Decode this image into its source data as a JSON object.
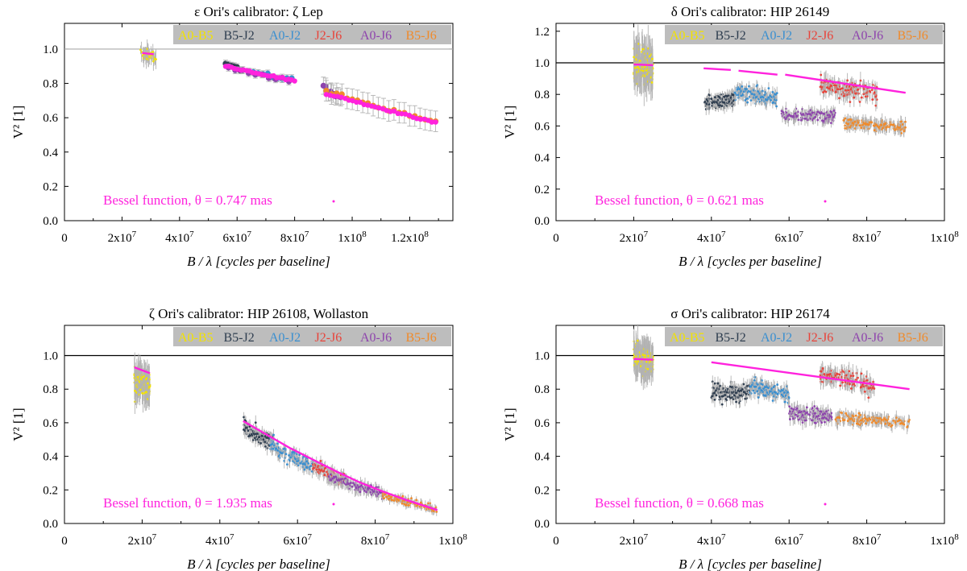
{
  "figure": {
    "xlabel": "B / λ [cycles per baseline]",
    "ylabel": "V² [1]"
  },
  "chart_data": [
    {
      "type": "scatter",
      "title": "ε Ori's calibrator: ζ Lep",
      "xlabel": "B / λ [cycles per baseline]",
      "ylabel": "V² [1]",
      "xlim": [
        0,
        135000000
      ],
      "ylim": [
        0,
        1.15
      ],
      "xticks": [
        0,
        20000000,
        40000000,
        60000000,
        80000000,
        100000000,
        120000000
      ],
      "xtick_labels": [
        "0",
        "2x10^7",
        "4x10^7",
        "6x10^7",
        "8x10^7",
        "1x10^8",
        "1.2x10^8"
      ],
      "yticks": [
        0,
        0.2,
        0.4,
        0.6,
        0.8,
        1.0
      ],
      "ytick_labels": [
        "0.0",
        "0.2",
        "0.4",
        "0.6",
        "0.8",
        "1.0"
      ],
      "unity_line_color": "#aaaaaa",
      "legend": [
        "A0-B5",
        "B5-J2",
        "A0-J2",
        "J2-J6",
        "A0-J6",
        "B5-J6"
      ],
      "annotation": "Bessel function, θ = 0.747 mas",
      "groups": [
        {
          "band": "A0-B5",
          "color": "#f2e200",
          "x_range": [
            27000000,
            31000000
          ],
          "y_start": 0.98,
          "y_end": 0.96,
          "scatter": 0.02,
          "err": 0.04,
          "n": 40,
          "style": "clump"
        },
        {
          "band": "B5-J2",
          "color": "#2f3e50",
          "x_range": [
            56000000,
            62000000
          ],
          "y_start": 0.91,
          "y_end": 0.87,
          "scatter": 0.02,
          "err": 0.02,
          "n": 7,
          "style": "dots"
        },
        {
          "band": "A0-J2",
          "color": "#3a8fd0",
          "x_range": [
            64000000,
            79000000
          ],
          "y_start": 0.87,
          "y_end": 0.82,
          "scatter": 0.015,
          "err": 0.02,
          "n": 10,
          "style": "dots"
        },
        {
          "band": "A0-J6",
          "color": "#8e44ad",
          "x_range": [
            57000000,
            78000000
          ],
          "y_start": 0.89,
          "y_end": 0.81,
          "scatter": 0.015,
          "err": 0.02,
          "n": 10,
          "style": "dots"
        },
        {
          "band": "A0-J6",
          "color": "#8e44ad",
          "x_range": [
            90000000,
            96000000
          ],
          "y_start": 0.78,
          "y_end": 0.72,
          "scatter": 0.03,
          "err": 0.05,
          "n": 8,
          "style": "dots"
        },
        {
          "band": "B5-J6",
          "color": "#f08a2a",
          "x_range": [
            91000000,
            129000000
          ],
          "y_start": 0.75,
          "y_end": 0.57,
          "scatter": 0.015,
          "err": 0.06,
          "n": 22,
          "style": "dots"
        }
      ],
      "model": [
        {
          "x": [
            27000000,
            31000000
          ],
          "y": [
            0.977,
            0.97
          ],
          "style": "line"
        },
        {
          "x": [
            56000000,
            80000000
          ],
          "y": [
            0.9,
            0.815
          ],
          "style": "dots",
          "n": 24
        },
        {
          "x": [
            91000000,
            129000000
          ],
          "y": [
            0.74,
            0.57
          ],
          "style": "dots",
          "n": 30
        }
      ]
    },
    {
      "type": "scatter",
      "title": "δ Ori's calibrator: HIP 26149",
      "xlabel": "B / λ [cycles per baseline]",
      "ylabel": "V² [1]",
      "xlim": [
        0,
        100000000
      ],
      "ylim": [
        0,
        1.25
      ],
      "xticks": [
        0,
        20000000,
        40000000,
        60000000,
        80000000,
        100000000
      ],
      "xtick_labels": [
        "0",
        "2x10^7",
        "4x10^7",
        "6x10^7",
        "8x10^7",
        "1x10^8"
      ],
      "yticks": [
        0,
        0.2,
        0.4,
        0.6,
        0.8,
        1.0,
        1.2
      ],
      "ytick_labels": [
        "0.0",
        "0.2",
        "0.4",
        "0.6",
        "0.8",
        "1.0",
        "1.2"
      ],
      "unity_line_color": "#000000",
      "legend": [
        "A0-B5",
        "B5-J2",
        "A0-J2",
        "J2-J6",
        "A0-J6",
        "B5-J6"
      ],
      "annotation": "Bessel function, θ = 0.621 mas",
      "groups": [
        {
          "band": "A0-B5",
          "color": "#f2e200",
          "x_range": [
            20000000,
            25000000
          ],
          "y_start": 0.99,
          "y_end": 0.98,
          "scatter": 0.05,
          "err": 0.1,
          "n": 150,
          "style": "cloud"
        },
        {
          "band": "B5-J2",
          "color": "#2f3e50",
          "x_range": [
            38000000,
            46000000
          ],
          "y_start": 0.74,
          "y_end": 0.77,
          "scatter": 0.02,
          "err": 0.03,
          "n": 150,
          "style": "cloud"
        },
        {
          "band": "A0-J2",
          "color": "#3a8fd0",
          "x_range": [
            46000000,
            57000000
          ],
          "y_start": 0.82,
          "y_end": 0.76,
          "scatter": 0.025,
          "err": 0.03,
          "n": 150,
          "style": "cloud"
        },
        {
          "band": "A0-J6",
          "color": "#8e44ad",
          "x_range": [
            58000000,
            72000000
          ],
          "y_start": 0.67,
          "y_end": 0.66,
          "scatter": 0.02,
          "err": 0.03,
          "n": 150,
          "style": "cloud"
        },
        {
          "band": "J2-J6",
          "color": "#e8433a",
          "x_range": [
            68000000,
            83000000
          ],
          "y_start": 0.86,
          "y_end": 0.81,
          "scatter": 0.03,
          "err": 0.04,
          "n": 150,
          "style": "cloud"
        },
        {
          "band": "B5-J6",
          "color": "#f08a2a",
          "x_range": [
            74000000,
            90000000
          ],
          "y_start": 0.62,
          "y_end": 0.59,
          "scatter": 0.015,
          "err": 0.03,
          "n": 150,
          "style": "cloud"
        }
      ],
      "model": [
        {
          "x": [
            20000000,
            25000000
          ],
          "y": [
            0.99,
            0.985
          ],
          "style": "line"
        },
        {
          "x": [
            38000000,
            45000000
          ],
          "y": [
            0.965,
            0.955
          ],
          "style": "line"
        },
        {
          "x": [
            47000000,
            57000000
          ],
          "y": [
            0.95,
            0.925
          ],
          "style": "line"
        },
        {
          "x": [
            59000000,
            90000000
          ],
          "y": [
            0.925,
            0.81
          ],
          "style": "line"
        }
      ]
    },
    {
      "type": "scatter",
      "title": "ζ Ori's calibrator: HIP 26108, Wollaston",
      "xlabel": "B / λ [cycles per baseline]",
      "ylabel": "V² [1]",
      "xlim": [
        0,
        100000000
      ],
      "ylim": [
        0,
        1.18
      ],
      "xticks": [
        0,
        20000000,
        40000000,
        60000000,
        80000000,
        100000000
      ],
      "xtick_labels": [
        "0",
        "2x10^7",
        "4x10^7",
        "6x10^7",
        "8x10^7",
        "1x10^8"
      ],
      "yticks": [
        0,
        0.2,
        0.4,
        0.6,
        0.8,
        1.0
      ],
      "ytick_labels": [
        "0.0",
        "0.2",
        "0.4",
        "0.6",
        "0.8",
        "1.0"
      ],
      "unity_line_color": "#000000",
      "legend": [
        "A0-B5",
        "B5-J2",
        "A0-J2",
        "J2-J6",
        "A0-J6",
        "B5-J6"
      ],
      "annotation": "Bessel function, θ = 1.935 mas",
      "groups": [
        {
          "band": "A0-B5",
          "color": "#f2e200",
          "x_range": [
            18000000,
            22000000
          ],
          "y_start": 0.86,
          "y_end": 0.82,
          "scatter": 0.04,
          "err": 0.08,
          "n": 120,
          "style": "cloud"
        },
        {
          "band": "B5-J2",
          "color": "#2f3e50",
          "x_range": [
            46000000,
            54000000
          ],
          "y_start": 0.57,
          "y_end": 0.48,
          "scatter": 0.02,
          "err": 0.03,
          "n": 130,
          "style": "cloud"
        },
        {
          "band": "A0-J2",
          "color": "#3a8fd0",
          "x_range": [
            53000000,
            64000000
          ],
          "y_start": 0.47,
          "y_end": 0.33,
          "scatter": 0.02,
          "err": 0.03,
          "n": 130,
          "style": "cloud"
        },
        {
          "band": "J2-J6",
          "color": "#e8433a",
          "x_range": [
            64000000,
            72000000
          ],
          "y_start": 0.34,
          "y_end": 0.25,
          "scatter": 0.02,
          "err": 0.03,
          "n": 120,
          "style": "cloud"
        },
        {
          "band": "A0-J6",
          "color": "#8e44ad",
          "x_range": [
            68000000,
            82000000
          ],
          "y_start": 0.28,
          "y_end": 0.17,
          "scatter": 0.015,
          "err": 0.03,
          "n": 130,
          "style": "cloud"
        },
        {
          "band": "B5-J6",
          "color": "#f08a2a",
          "x_range": [
            82000000,
            96000000
          ],
          "y_start": 0.17,
          "y_end": 0.08,
          "scatter": 0.01,
          "err": 0.02,
          "n": 120,
          "style": "cloud"
        }
      ],
      "model": [
        {
          "x": [
            18000000,
            22000000
          ],
          "y": [
            0.93,
            0.895
          ],
          "style": "line"
        },
        {
          "x": [
            46000000,
            52000000,
            58000000,
            64000000,
            70000000,
            76000000,
            82000000,
            88000000,
            96000000
          ],
          "y": [
            0.61,
            0.53,
            0.45,
            0.38,
            0.31,
            0.245,
            0.19,
            0.14,
            0.08
          ],
          "style": "line"
        }
      ]
    },
    {
      "type": "scatter",
      "title": "σ Ori's calibrator: HIP 26174",
      "xlabel": "B / λ [cycles per baseline]",
      "ylabel": "V² [1]",
      "xlim": [
        0,
        100000000
      ],
      "ylim": [
        0,
        1.18
      ],
      "xticks": [
        0,
        20000000,
        40000000,
        60000000,
        80000000,
        100000000
      ],
      "xtick_labels": [
        "0",
        "2x10^7",
        "4x10^7",
        "6x10^7",
        "8x10^7",
        "1x10^8"
      ],
      "yticks": [
        0,
        0.2,
        0.4,
        0.6,
        0.8,
        1.0
      ],
      "ytick_labels": [
        "0.0",
        "0.2",
        "0.4",
        "0.6",
        "0.8",
        "1.0"
      ],
      "unity_line_color": "#000000",
      "legend": [
        "A0-B5",
        "B5-J2",
        "A0-J2",
        "J2-J6",
        "A0-J6",
        "B5-J6"
      ],
      "annotation": "Bessel function, θ = 0.668 mas",
      "groups": [
        {
          "band": "A0-B5",
          "color": "#f2e200",
          "x_range": [
            20000000,
            25000000
          ],
          "y_start": 0.99,
          "y_end": 0.97,
          "scatter": 0.04,
          "err": 0.08,
          "n": 150,
          "style": "cloud"
        },
        {
          "band": "B5-J2",
          "color": "#2f3e50",
          "x_range": [
            40000000,
            50000000
          ],
          "y_start": 0.77,
          "y_end": 0.79,
          "scatter": 0.025,
          "err": 0.03,
          "n": 150,
          "style": "cloud"
        },
        {
          "band": "A0-J2",
          "color": "#3a8fd0",
          "x_range": [
            50000000,
            60000000
          ],
          "y_start": 0.82,
          "y_end": 0.76,
          "scatter": 0.02,
          "err": 0.03,
          "n": 150,
          "style": "cloud"
        },
        {
          "band": "A0-J6",
          "color": "#8e44ad",
          "x_range": [
            60000000,
            71000000
          ],
          "y_start": 0.66,
          "y_end": 0.64,
          "scatter": 0.02,
          "err": 0.03,
          "n": 150,
          "style": "cloud"
        },
        {
          "band": "J2-J6",
          "color": "#e8433a",
          "x_range": [
            68000000,
            82000000
          ],
          "y_start": 0.88,
          "y_end": 0.82,
          "scatter": 0.025,
          "err": 0.04,
          "n": 150,
          "style": "cloud"
        },
        {
          "band": "B5-J6",
          "color": "#f08a2a",
          "x_range": [
            72000000,
            91000000
          ],
          "y_start": 0.63,
          "y_end": 0.6,
          "scatter": 0.015,
          "err": 0.03,
          "n": 150,
          "style": "cloud"
        }
      ],
      "model": [
        {
          "x": [
            20000000,
            25000000
          ],
          "y": [
            0.98,
            0.975
          ],
          "style": "line"
        },
        {
          "x": [
            40000000,
            91000000
          ],
          "y": [
            0.96,
            0.8
          ],
          "style": "line"
        }
      ]
    }
  ],
  "colors": {
    "model": "#ff22dd",
    "errorbar": "#b3b3b3",
    "legend_bg": "#bdbdbd",
    "axis": "#000000"
  }
}
